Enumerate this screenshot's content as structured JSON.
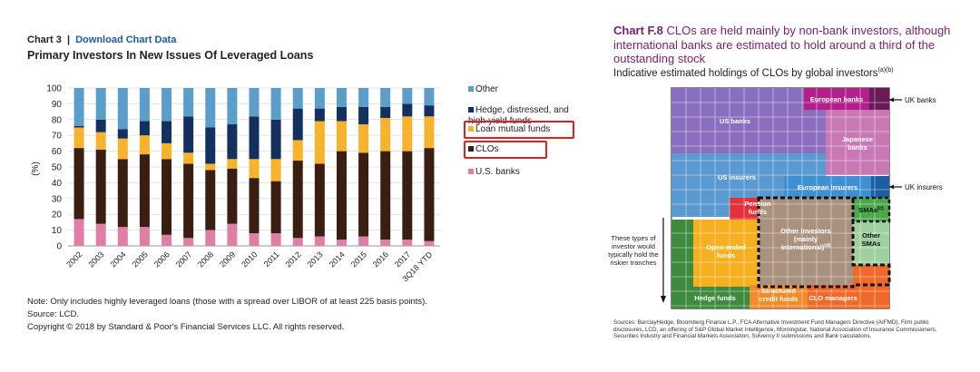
{
  "left_panel": {
    "chart_label": "Chart 3",
    "separator": "|",
    "download_link": "Download Chart Data",
    "footnote": "Note: Only includes highly leveraged loans (those with a spread over LIBOR of at least 225 basis points).",
    "source": "Source: LCD.",
    "copyright": "Copyright © 2018 by Standard & Poor's Financial Services LLC. All rights reserved."
  },
  "right_panel": {
    "chart_label": "Chart F.8",
    "title_rest": " CLOs are held mainly by non-bank investors, although international banks are estimated to hold around a third of the outstanding stock",
    "subtitle": "Indicative estimated holdings of CLOs by global investors",
    "subtitle_sup": "(a)(b)",
    "side_note": "These types of investor would typically hold the riskier tranches",
    "source": "Sources: BarclayHedge, Bloomberg Finance L.P., FCA Alternative Investment Fund Managers Directive (AIFMD), Firm public disclosures, LCD, an offering of S&P Global Market Intelligence, Morningstar, National Association of Insurance Commissioners, Securities Industry and Financial Markets Association, Solvency II submissions and Bank calculations."
  },
  "chart_data": [
    {
      "type": "bar",
      "stacked": true,
      "title": "Primary Investors In New Issues Of Leveraged Loans",
      "ylabel": "(%)",
      "ylim": [
        0,
        100
      ],
      "yticks": [
        0,
        10,
        20,
        30,
        40,
        50,
        60,
        70,
        80,
        90,
        100
      ],
      "categories": [
        "2002",
        "2003",
        "2004",
        "2005",
        "2006",
        "2007",
        "2008",
        "2009",
        "2010",
        "2011",
        "2012",
        "2013",
        "2014",
        "2015",
        "2016",
        "2017",
        "3Q18 YTD"
      ],
      "series": [
        {
          "name": "U.S. banks",
          "color": "#e07fa6",
          "values": [
            17,
            14,
            12,
            12,
            7,
            5,
            10,
            14,
            8,
            8,
            5,
            6,
            4,
            6,
            4,
            4,
            3
          ]
        },
        {
          "name": "CLOs",
          "color": "#3a1e12",
          "values": [
            45,
            47,
            43,
            46,
            48,
            47,
            38,
            35,
            35,
            33,
            49,
            46,
            56,
            53,
            56,
            56,
            59
          ]
        },
        {
          "name": "Loan mutual funds",
          "color": "#f7b32b",
          "values": [
            13,
            11,
            13,
            12,
            10,
            7,
            4,
            6,
            12,
            14,
            13,
            27,
            19,
            18,
            21,
            22,
            20
          ]
        },
        {
          "name": "Hedge, distressed, and high-yield funds",
          "color": "#14315e",
          "values": [
            1,
            8,
            6,
            9,
            14,
            23,
            23,
            22,
            27,
            25,
            20,
            8,
            9,
            11,
            7,
            8,
            7
          ]
        },
        {
          "name": "Other",
          "color": "#5b9ec9",
          "values": [
            24,
            20,
            26,
            21,
            21,
            18,
            25,
            23,
            18,
            20,
            13,
            13,
            12,
            12,
            12,
            10,
            11
          ]
        }
      ],
      "legend": [
        "Other",
        "Hedge, distressed, and high-yield funds",
        "Loan mutual funds",
        "CLOs",
        "U.S. banks"
      ],
      "legend_placement": "right",
      "highlighted_legend": [
        "Loan mutual funds",
        "CLOs"
      ]
    },
    {
      "type": "treemap",
      "title": "Indicative estimated holdings of CLOs by global investors",
      "blocks": [
        {
          "name": "US banks",
          "color": "#8a6fc0"
        },
        {
          "name": "European banks",
          "color": "#b21f8a"
        },
        {
          "name": "UK banks",
          "color": "#6a1a56"
        },
        {
          "name": "Japanese banks",
          "color": "#c978b4"
        },
        {
          "name": "US insurers",
          "color": "#5b9ad1"
        },
        {
          "name": "European insurers",
          "color": "#3f8fd3"
        },
        {
          "name": "UK insurers",
          "color": "#1c5ea3"
        },
        {
          "name": "Pension funds",
          "color": "#e3303c"
        },
        {
          "name": "Other investors (mainly international)",
          "sup": "(d)",
          "color": "#a8927f"
        },
        {
          "name": "SMAs",
          "sup": "(c)",
          "color": "#4aa84a"
        },
        {
          "name": "Other SMAs",
          "color": "#9fd09f"
        },
        {
          "name": "Open-ended funds",
          "color": "#f5b020"
        },
        {
          "name": "Hedge funds",
          "color": "#3e8b3e"
        },
        {
          "name": "Structured credit funds",
          "color": "#f18b2b"
        },
        {
          "name": "CLO managers",
          "color": "#ef6a2a"
        }
      ],
      "external_labels": [
        "UK banks",
        "UK insurers"
      ]
    }
  ]
}
